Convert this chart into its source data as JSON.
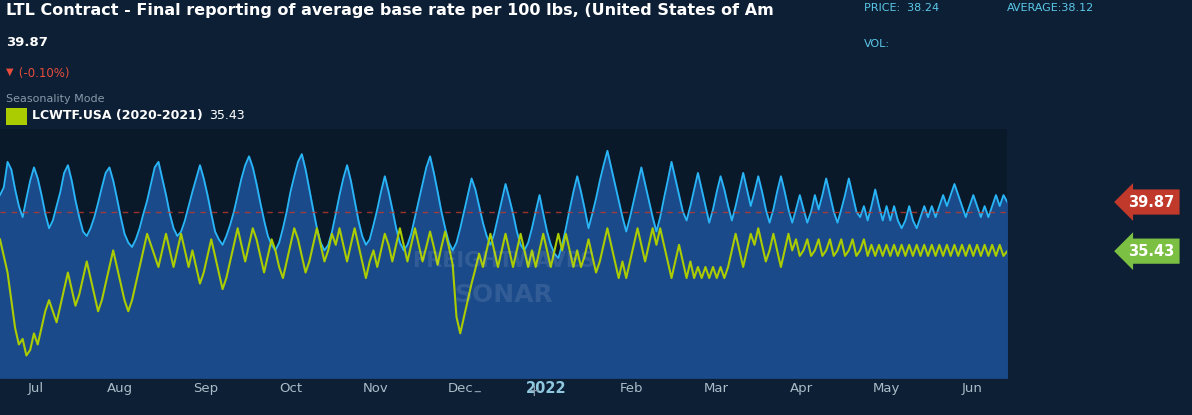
{
  "title": "LTL Contract - Final reporting of average base rate per 100 lbs, (United States of Am",
  "price_label": "39.87",
  "change_label": "(-0.10%)",
  "seasonality_label": "Seasonality Mode",
  "price_info": "PRICE:  38.24",
  "avg_info": "AVERAGE:38.12",
  "vol_info": "VOL:",
  "bg_color": "#0d1f35",
  "plot_bg_color": "#0a1929",
  "blue_line_color": "#29b6f6",
  "blue_fill_color": "#1a4a8a",
  "green_line_color": "#aacc00",
  "dashed_line_color": "#c0392b",
  "dashed_line_y": 39.0,
  "y_min": 24.0,
  "y_max": 46.5,
  "y_ticks": [
    25.0,
    30.0,
    35.0,
    40.0,
    45.0
  ],
  "x_labels": [
    "Jul",
    "Aug",
    "Sep",
    "Oct",
    "Nov",
    "Dec",
    "2022",
    "Feb",
    "Mar",
    "Apr",
    "May",
    "Jun"
  ],
  "price_tag_color": "#c0392b",
  "green_tag_color": "#7bc043",
  "blue_data": [
    40.5,
    41.2,
    43.5,
    42.8,
    41.0,
    39.5,
    38.5,
    40.2,
    41.8,
    43.0,
    42.0,
    40.5,
    38.8,
    37.5,
    38.2,
    39.5,
    40.8,
    42.5,
    43.2,
    41.8,
    40.0,
    38.5,
    37.2,
    36.8,
    37.5,
    38.5,
    39.8,
    41.2,
    42.5,
    43.0,
    41.8,
    40.2,
    38.5,
    37.0,
    36.2,
    35.8,
    36.5,
    37.5,
    38.8,
    40.0,
    41.5,
    43.0,
    43.5,
    42.0,
    40.5,
    38.8,
    37.5,
    36.8,
    37.2,
    38.2,
    39.5,
    40.8,
    42.0,
    43.2,
    42.0,
    40.5,
    38.8,
    37.2,
    36.5,
    36.0,
    36.8,
    37.8,
    39.0,
    40.5,
    42.0,
    43.2,
    44.0,
    43.0,
    41.5,
    39.8,
    38.2,
    36.8,
    36.0,
    35.5,
    36.2,
    37.5,
    39.0,
    40.8,
    42.2,
    43.5,
    44.2,
    42.8,
    41.0,
    39.2,
    37.5,
    36.2,
    35.5,
    36.0,
    37.2,
    38.8,
    40.5,
    42.0,
    43.2,
    41.8,
    40.0,
    38.2,
    36.8,
    36.0,
    36.5,
    37.8,
    39.2,
    40.8,
    42.2,
    40.8,
    39.2,
    37.5,
    36.2,
    35.5,
    36.0,
    37.0,
    38.5,
    40.0,
    41.5,
    43.0,
    44.0,
    42.5,
    40.8,
    39.0,
    37.5,
    36.2,
    35.5,
    36.2,
    37.5,
    39.0,
    40.5,
    42.0,
    41.0,
    39.5,
    38.0,
    36.8,
    36.0,
    37.0,
    38.5,
    40.0,
    41.5,
    40.2,
    38.8,
    37.2,
    36.0,
    35.5,
    36.2,
    37.5,
    39.0,
    40.5,
    38.8,
    37.2,
    36.0,
    35.2,
    34.8,
    36.0,
    37.5,
    39.2,
    40.8,
    42.2,
    40.8,
    39.2,
    37.5,
    38.8,
    40.2,
    41.8,
    43.2,
    44.5,
    43.0,
    41.5,
    40.0,
    38.5,
    37.2,
    38.5,
    40.0,
    41.5,
    43.0,
    41.5,
    40.0,
    38.5,
    37.2,
    38.5,
    40.2,
    41.8,
    43.5,
    42.0,
    40.5,
    39.0,
    38.2,
    39.5,
    41.0,
    42.5,
    41.0,
    39.5,
    38.0,
    39.2,
    40.8,
    42.2,
    41.0,
    39.5,
    38.2,
    39.5,
    41.0,
    42.5,
    41.0,
    39.5,
    40.8,
    42.2,
    40.8,
    39.2,
    38.0,
    39.2,
    40.8,
    42.2,
    40.8,
    39.2,
    38.0,
    39.2,
    40.5,
    39.2,
    38.0,
    39.0,
    40.5,
    39.2,
    40.5,
    42.0,
    40.5,
    39.0,
    38.0,
    39.2,
    40.5,
    42.0,
    40.5,
    39.0,
    38.5,
    39.5,
    38.2,
    39.5,
    41.0,
    39.5,
    38.2,
    39.5,
    38.2,
    39.5,
    38.2,
    37.5,
    38.2,
    39.5,
    38.2,
    37.5,
    38.5,
    39.5,
    38.5,
    39.5,
    38.5,
    39.5,
    40.5,
    39.5,
    40.5,
    41.5,
    40.5,
    39.5,
    38.5,
    39.5,
    40.5,
    39.5,
    38.5,
    39.5,
    38.5,
    39.5,
    40.5,
    39.5,
    40.5,
    39.87
  ],
  "green_data": [
    36.5,
    35.0,
    33.5,
    31.0,
    28.5,
    27.0,
    27.5,
    26.0,
    26.5,
    28.0,
    27.0,
    28.5,
    30.0,
    31.0,
    30.0,
    29.0,
    30.5,
    32.0,
    33.5,
    32.0,
    30.5,
    31.5,
    33.0,
    34.5,
    33.0,
    31.5,
    30.0,
    31.0,
    32.5,
    34.0,
    35.5,
    34.0,
    32.5,
    31.0,
    30.0,
    31.0,
    32.5,
    34.0,
    35.5,
    37.0,
    36.0,
    35.0,
    34.0,
    35.5,
    37.0,
    35.5,
    34.0,
    35.5,
    37.0,
    35.5,
    34.0,
    35.5,
    34.0,
    32.5,
    33.5,
    35.0,
    36.5,
    35.0,
    33.5,
    32.0,
    33.0,
    34.5,
    36.0,
    37.5,
    36.0,
    34.5,
    36.0,
    37.5,
    36.5,
    35.0,
    33.5,
    35.0,
    36.5,
    35.5,
    34.0,
    33.0,
    34.5,
    36.0,
    37.5,
    36.5,
    35.0,
    33.5,
    34.5,
    36.0,
    37.5,
    36.0,
    34.5,
    35.5,
    37.0,
    36.0,
    37.5,
    36.0,
    34.5,
    36.0,
    37.5,
    36.0,
    34.5,
    33.0,
    34.5,
    35.5,
    34.0,
    35.5,
    37.0,
    36.0,
    34.5,
    36.0,
    37.5,
    36.0,
    34.5,
    36.0,
    37.5,
    36.0,
    34.5,
    35.8,
    37.2,
    35.8,
    34.2,
    35.8,
    37.2,
    35.8,
    34.2,
    29.5,
    28.0,
    29.5,
    31.0,
    32.5,
    33.8,
    35.2,
    34.0,
    35.5,
    37.0,
    35.5,
    34.0,
    35.5,
    37.0,
    35.5,
    34.0,
    35.5,
    37.0,
    35.5,
    34.0,
    35.5,
    34.0,
    35.5,
    37.0,
    35.5,
    34.0,
    35.5,
    37.0,
    35.5,
    37.0,
    35.5,
    34.0,
    35.5,
    34.0,
    35.0,
    36.5,
    35.0,
    33.5,
    34.5,
    36.0,
    37.5,
    36.0,
    34.5,
    33.0,
    34.5,
    33.0,
    34.5,
    36.0,
    37.5,
    36.0,
    34.5,
    36.0,
    37.5,
    36.0,
    37.5,
    36.0,
    34.5,
    33.0,
    34.5,
    36.0,
    34.5,
    33.0,
    34.5,
    33.0,
    34.0,
    33.0,
    34.0,
    33.0,
    34.0,
    33.0,
    34.0,
    33.0,
    34.0,
    35.5,
    37.0,
    35.5,
    34.0,
    35.5,
    37.0,
    36.0,
    37.5,
    36.0,
    34.5,
    35.5,
    37.0,
    35.5,
    34.0,
    35.5,
    37.0,
    35.5,
    36.5,
    35.0,
    35.5,
    36.5,
    35.0,
    35.5,
    36.5,
    35.0,
    35.5,
    36.5,
    35.0,
    35.5,
    36.5,
    35.0,
    35.5,
    36.5,
    35.0,
    35.5,
    36.5,
    35.0,
    36.0,
    35.0,
    36.0,
    35.0,
    36.0,
    35.0,
    36.0,
    35.0,
    36.0,
    35.0,
    36.0,
    35.0,
    36.0,
    35.0,
    36.0,
    35.0,
    36.0,
    35.0,
    36.0,
    35.0,
    36.0,
    35.0,
    36.0,
    35.0,
    36.0,
    35.0,
    36.0,
    35.0,
    36.0,
    35.0,
    36.0,
    35.0,
    36.0,
    35.0,
    36.0,
    35.0,
    35.43
  ]
}
